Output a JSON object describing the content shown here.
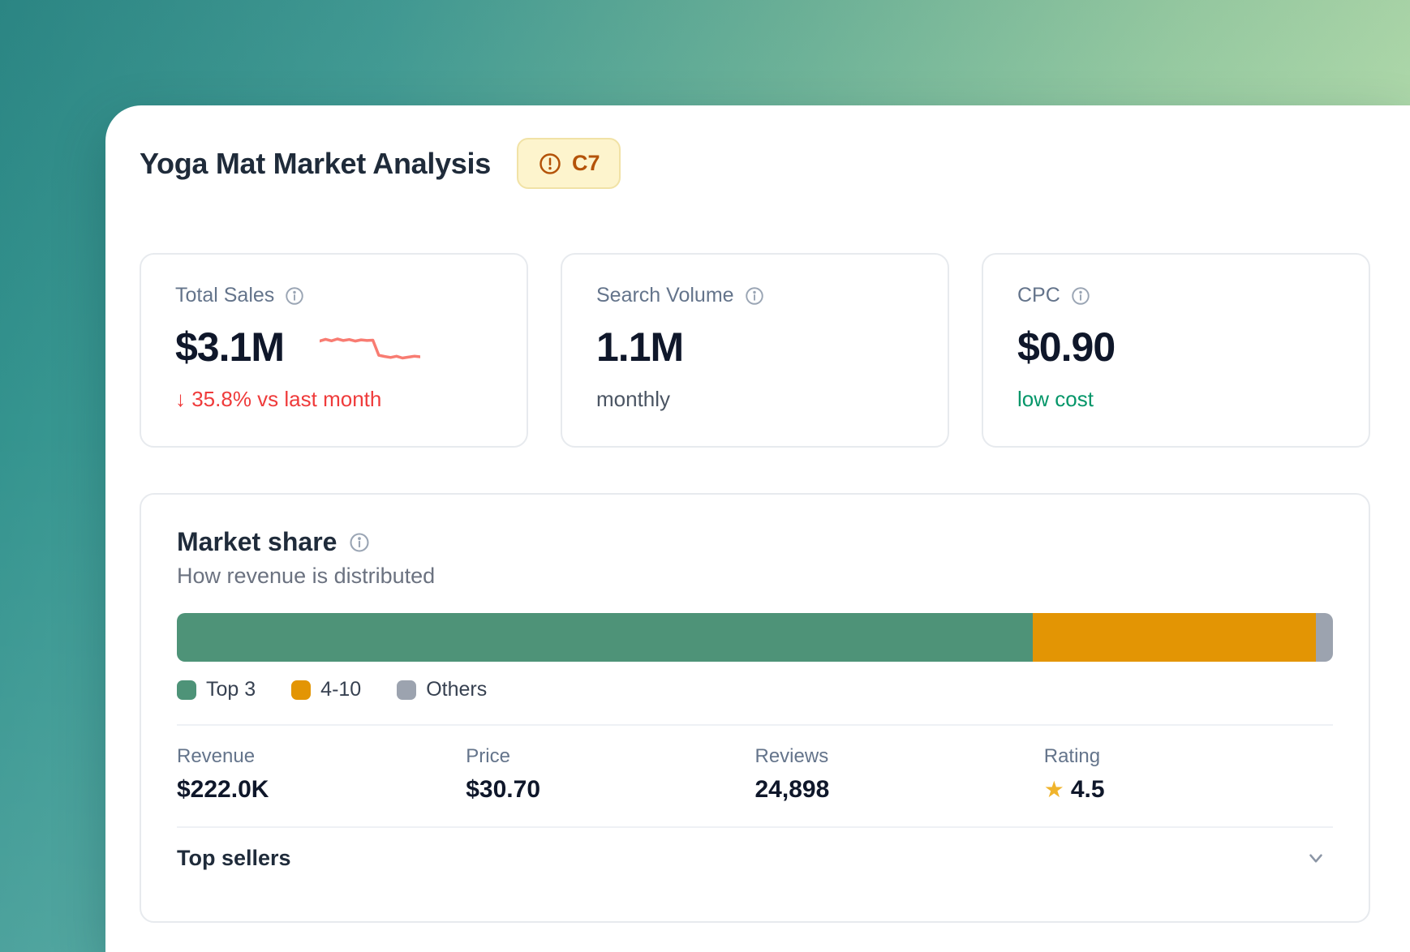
{
  "header": {
    "title": "Yoga Mat Market Analysis",
    "badge": {
      "label": "C7",
      "icon": "alert-circle-icon"
    }
  },
  "stat_cards": [
    {
      "label": "Total Sales",
      "value": "$3.1M",
      "change": "↓ 35.8% vs last month",
      "change_direction": "down",
      "sparkline": {
        "type": "line",
        "trend": "declining",
        "points": [
          72,
          78,
          73,
          79,
          74,
          77,
          72,
          76,
          74,
          75,
          26,
          22,
          19,
          23,
          17,
          20,
          23,
          21
        ]
      }
    },
    {
      "label": "Search Volume",
      "value": "1.1M",
      "sub": "monthly"
    },
    {
      "label": "CPC",
      "value": "$0.90",
      "sub": "low cost"
    }
  ],
  "market_share": {
    "title": "Market share",
    "subtitle": "How revenue is distributed",
    "chart_data": {
      "type": "stacked_bar",
      "unit": "percent of revenue",
      "segments": [
        {
          "label": "Top 3",
          "value": 74,
          "color": "#4e9378"
        },
        {
          "label": "4-10",
          "value": 24.5,
          "color": "#e39504"
        },
        {
          "label": "Others",
          "value": 1.5,
          "color": "#9ca3af"
        }
      ],
      "legend_position": "bottom"
    },
    "stats": [
      {
        "label": "Revenue",
        "value": "$222.0K"
      },
      {
        "label": "Price",
        "value": "$30.70"
      },
      {
        "label": "Reviews",
        "value": "24,898"
      },
      {
        "label": "Rating",
        "value": "4.5",
        "icon": "star-icon"
      }
    ],
    "top_sellers_label": "Top sellers"
  },
  "colors": {
    "negative": "#ef3b3b",
    "positive": "#059669",
    "sparkline": "#f87c72",
    "star": "#f0b42c",
    "badge_text": "#b45309",
    "badge_bg": "#fdf4cd"
  }
}
